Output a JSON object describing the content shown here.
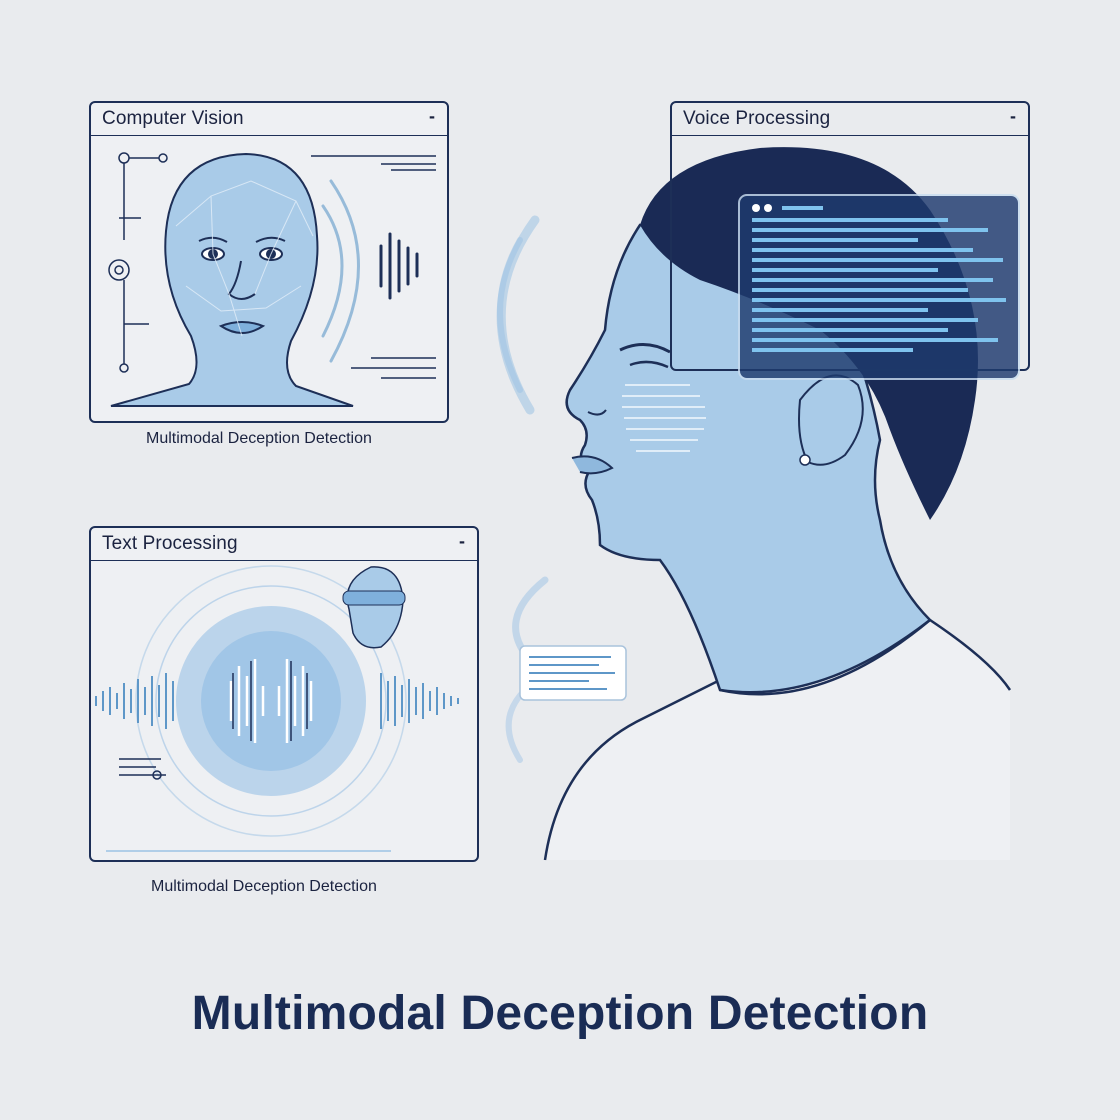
{
  "panels": {
    "computer_vision": {
      "title": "Computer Vision",
      "minimize": "-"
    },
    "voice_processing": {
      "title": "Voice Processing",
      "minimize": "-"
    },
    "text_processing": {
      "title": "Text Processing",
      "minimize": "-"
    }
  },
  "captions": {
    "top": "Multimodal Deception Detection",
    "bottom": "Multimodal Deception Detection"
  },
  "main_title": "Multimodal Deception Detection",
  "colors": {
    "navy": "#1d2f57",
    "light_blue": "#a9cbe8",
    "mid_blue": "#5e97c8",
    "background": "#e9ebee"
  }
}
